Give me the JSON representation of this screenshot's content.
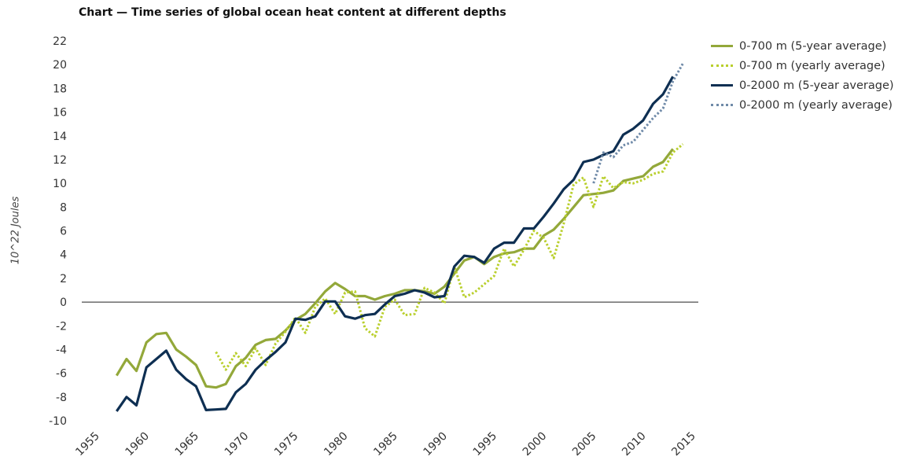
{
  "chart_data": {
    "type": "line",
    "title": "Chart — Time series of global ocean heat content at different depths",
    "ylabel": "10^22 Joules",
    "xlabel": "",
    "xlim": [
      1955,
      2015
    ],
    "ylim": [
      -10,
      22
    ],
    "xticks": [
      1955,
      1960,
      1965,
      1970,
      1975,
      1980,
      1985,
      1990,
      1995,
      2000,
      2005,
      2010,
      2015
    ],
    "yticks": [
      -10,
      -8,
      -6,
      -4,
      -2,
      0,
      2,
      4,
      6,
      8,
      10,
      12,
      14,
      16,
      18,
      20,
      22
    ],
    "legend_position": "right",
    "series": [
      {
        "name": "0-700 m (5-year average)",
        "color": "#93a83a",
        "style": "solid",
        "x": [
          1957,
          1958,
          1959,
          1960,
          1961,
          1962,
          1963,
          1964,
          1965,
          1966,
          1967,
          1968,
          1969,
          1970,
          1971,
          1972,
          1973,
          1974,
          1975,
          1976,
          1977,
          1978,
          1979,
          1980,
          1981,
          1982,
          1983,
          1984,
          1985,
          1986,
          1987,
          1988,
          1989,
          1990,
          1991,
          1992,
          1993,
          1994,
          1995,
          1996,
          1997,
          1998,
          1999,
          2000,
          2001,
          2002,
          2003,
          2004,
          2005,
          2006,
          2007,
          2008,
          2009,
          2010,
          2011,
          2012,
          2013
        ],
        "y": [
          -6.2,
          -4.8,
          -5.8,
          -3.4,
          -2.7,
          -2.6,
          -4.0,
          -4.6,
          -5.3,
          -7.1,
          -7.2,
          -6.9,
          -5.4,
          -4.7,
          -3.6,
          -3.2,
          -3.1,
          -2.4,
          -1.5,
          -1.0,
          -0.1,
          0.9,
          1.6,
          1.1,
          0.5,
          0.5,
          0.2,
          0.5,
          0.7,
          1.0,
          1.0,
          0.9,
          0.7,
          1.3,
          2.4,
          3.5,
          3.8,
          3.2,
          3.8,
          4.1,
          4.2,
          4.5,
          4.5,
          5.6,
          6.1,
          7.0,
          8.0,
          9.0,
          9.1,
          9.2,
          9.4,
          10.2,
          10.4,
          10.6,
          11.4,
          11.8,
          12.9
        ]
      },
      {
        "name": "0-700 m (yearly average)",
        "color": "#b9cf2c",
        "style": "dotted",
        "x": [
          1967,
          1968,
          1969,
          1970,
          1971,
          1972,
          1973,
          1974,
          1975,
          1976,
          1977,
          1978,
          1979,
          1980,
          1981,
          1982,
          1983,
          1984,
          1985,
          1986,
          1987,
          1988,
          1989,
          1990,
          1991,
          1992,
          1993,
          1994,
          1995,
          1996,
          1997,
          1998,
          1999,
          2000,
          2001,
          2002,
          2003,
          2004,
          2005,
          2006,
          2007,
          2008,
          2009,
          2010,
          2011,
          2012,
          2013,
          2014
        ],
        "y": [
          -4.2,
          -5.7,
          -4.3,
          -5.4,
          -3.9,
          -5.3,
          -3.5,
          -2.5,
          -1.3,
          -2.6,
          -0.4,
          0.3,
          -1.0,
          0.8,
          0.9,
          -2.2,
          -2.9,
          -0.4,
          0.2,
          -1.1,
          -1.0,
          1.2,
          0.8,
          -0.1,
          3.0,
          0.4,
          0.8,
          1.5,
          2.2,
          4.5,
          3.0,
          4.4,
          6.0,
          5.4,
          3.7,
          6.6,
          9.9,
          10.5,
          8.0,
          10.6,
          9.6,
          10.1,
          10.0,
          10.3,
          10.8,
          11.0,
          12.6,
          13.3
        ]
      },
      {
        "name": "0-2000 m (5-year average)",
        "color": "#0e2f52",
        "style": "solid",
        "x": [
          1957,
          1958,
          1959,
          1960,
          1961,
          1962,
          1963,
          1964,
          1965,
          1966,
          1967,
          1968,
          1969,
          1970,
          1971,
          1972,
          1973,
          1974,
          1975,
          1976,
          1977,
          1978,
          1979,
          1980,
          1981,
          1982,
          1983,
          1984,
          1985,
          1986,
          1987,
          1988,
          1989,
          1990,
          1991,
          1992,
          1993,
          1994,
          1995,
          1996,
          1997,
          1998,
          1999,
          2000,
          2001,
          2002,
          2003,
          2004,
          2005,
          2006,
          2007,
          2008,
          2009,
          2010,
          2011,
          2012,
          2013
        ],
        "y": [
          -9.2,
          -8.0,
          -8.7,
          -5.5,
          -4.8,
          -4.1,
          -5.7,
          -6.5,
          -7.1,
          -9.1,
          -9.05,
          -9.0,
          -7.6,
          -6.9,
          -5.7,
          -4.9,
          -4.2,
          -3.4,
          -1.4,
          -1.5,
          -1.2,
          0.05,
          0.05,
          -1.2,
          -1.4,
          -1.1,
          -1.0,
          -0.2,
          0.5,
          0.7,
          1.0,
          0.8,
          0.4,
          0.5,
          3.0,
          3.9,
          3.8,
          3.3,
          4.5,
          5.0,
          5.0,
          6.2,
          6.2,
          7.2,
          8.3,
          9.5,
          10.3,
          11.8,
          12.0,
          12.4,
          12.7,
          14.1,
          14.6,
          15.3,
          16.7,
          17.5,
          19.0
        ]
      },
      {
        "name": "0-2000 m (yearly average)",
        "color": "#6f8aa8",
        "style": "dotted",
        "x": [
          2005,
          2006,
          2007,
          2008,
          2009,
          2010,
          2011,
          2012,
          2013,
          2014
        ],
        "y": [
          10.0,
          12.6,
          12.2,
          13.2,
          13.5,
          14.5,
          15.5,
          16.3,
          18.6,
          20.1
        ]
      }
    ]
  }
}
